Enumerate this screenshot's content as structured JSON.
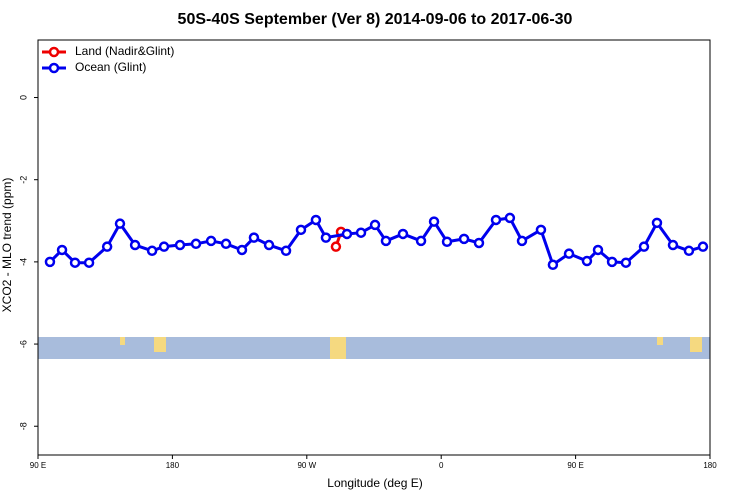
{
  "chart_data": {
    "type": "line",
    "title": "50S-40S September (Ver 8)   2014-09-06 to 2017-06-30",
    "x_label": "Longitude (deg E)",
    "y_label": "XCO2 - MLO trend (ppm)",
    "xlim": [
      90,
      540
    ],
    "xticks": [
      {
        "value": 90,
        "label": "90 E"
      },
      {
        "value": 180,
        "label": "180"
      },
      {
        "value": 270,
        "label": "90 W"
      },
      {
        "value": 360,
        "label": "0"
      },
      {
        "value": 450,
        "label": "90 E"
      },
      {
        "value": 540,
        "label": "180"
      }
    ],
    "ylim": [
      -8.7,
      1.4
    ],
    "yticks": [
      0,
      -2,
      -4,
      -6,
      -8
    ],
    "legend": "top-left",
    "series": [
      {
        "name": "Land (Nadir&Glint)",
        "color": "#ee0000",
        "x": [
          289.5,
          292.9
        ],
        "values": [
          -3.63,
          -3.27
        ]
      },
      {
        "name": "Ocean (Glint)",
        "color": "#0000ee",
        "x": [
          98,
          106.1,
          114.8,
          124.2,
          136.3,
          144.9,
          155.0,
          166.4,
          174.4,
          185.1,
          195.8,
          205.9,
          215.9,
          226.6,
          234.6,
          244.7,
          256.1,
          266.1,
          276.1,
          282.8,
          296.9,
          306.3,
          315.7,
          323.0,
          334.4,
          346.5,
          355.2,
          363.9,
          375.3,
          385.3,
          396.7,
          406.0,
          414.1,
          426.8,
          434.8,
          445.6,
          457.6,
          465.0,
          474.4,
          483.7,
          495.8,
          504.5,
          515.2,
          525.9,
          535.3
        ],
        "values": [
          -4.0,
          -3.71,
          -4.02,
          -4.02,
          -3.63,
          -3.07,
          -3.59,
          -3.73,
          -3.63,
          -3.59,
          -3.56,
          -3.49,
          -3.56,
          -3.71,
          -3.41,
          -3.59,
          -3.73,
          -3.22,
          -2.98,
          -3.41,
          -3.32,
          -3.29,
          -3.1,
          -3.49,
          -3.32,
          -3.49,
          -3.02,
          -3.51,
          -3.44,
          -3.54,
          -2.98,
          -2.93,
          -3.49,
          -3.22,
          -4.07,
          -3.8,
          -3.98,
          -3.71,
          -4.0,
          -4.02,
          -3.63,
          -3.05,
          -3.59,
          -3.73,
          -3.63
        ]
      }
    ]
  }
}
